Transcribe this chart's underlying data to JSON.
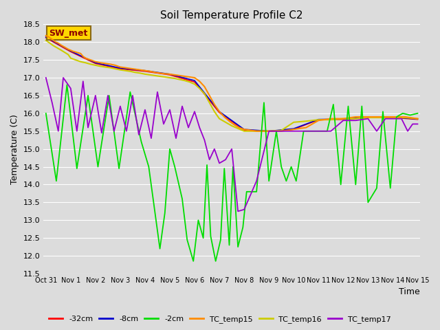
{
  "title": "Soil Temperature Profile C2",
  "xlabel": "Time",
  "ylabel": "Temperature (C)",
  "ylim": [
    11.5,
    18.5
  ],
  "bg_color": "#dcdcdc",
  "annotation_text": "SW_met",
  "annotation_color": "#8B0000",
  "annotation_bg": "#FFD700",
  "annotation_border": "#8B6914",
  "x_tick_str": [
    "Oct 31",
    "Nov 1",
    "Nov 2",
    "Nov 3",
    "Nov 4",
    "Nov 5",
    "Nov 6",
    "Nov 7",
    "Nov 8",
    "Nov 9",
    "Nov 10",
    "Nov 11",
    "Nov 12",
    "Nov 13",
    "Nov 14",
    "Nov 15"
  ],
  "yticks": [
    11.5,
    12.0,
    12.5,
    13.0,
    13.5,
    14.0,
    14.5,
    15.0,
    15.5,
    16.0,
    16.5,
    17.0,
    17.5,
    18.0,
    18.5
  ],
  "series_minus32cm_color": "#FF0000",
  "series_minus8cm_color": "#0000CD",
  "series_minus2cm_color": "#00DD00",
  "series_tc15_color": "#FF8C00",
  "series_tc16_color": "#CCCC00",
  "series_tc17_color": "#9900CC",
  "tc15_x": [
    0.0,
    0.1,
    0.2,
    0.3,
    0.4,
    0.5,
    0.6,
    0.7,
    0.8,
    0.9,
    1.0,
    1.1,
    1.2,
    1.3,
    1.4,
    1.5,
    1.6,
    1.8,
    2.0,
    2.2,
    2.4,
    2.6,
    2.8,
    3.0,
    3.2,
    3.4,
    3.6,
    3.8,
    4.0,
    4.2,
    4.4,
    4.6,
    4.8,
    5.0,
    5.2,
    5.4,
    5.6,
    5.8,
    6.0,
    6.2,
    6.4,
    6.6,
    6.8,
    7.0,
    7.2,
    7.4,
    7.6,
    7.8,
    8.0,
    8.5,
    9.0,
    9.5,
    10.0,
    10.5,
    11.0,
    11.5,
    12.0,
    12.5,
    13.0,
    13.5,
    14.0,
    14.5,
    15.0
  ],
  "tc15_y": [
    18.18,
    18.15,
    18.1,
    18.05,
    18.0,
    17.97,
    17.92,
    17.88,
    17.84,
    17.8,
    17.77,
    17.74,
    17.72,
    17.7,
    17.68,
    17.6,
    17.55,
    17.5,
    17.45,
    17.42,
    17.4,
    17.38,
    17.35,
    17.3,
    17.28,
    17.26,
    17.24,
    17.22,
    17.2,
    17.18,
    17.15,
    17.13,
    17.11,
    17.1,
    17.08,
    17.06,
    17.04,
    17.02,
    17.0,
    16.9,
    16.75,
    16.5,
    16.25,
    16.05,
    15.9,
    15.78,
    15.68,
    15.6,
    15.55,
    15.5,
    15.5,
    15.5,
    15.55,
    15.6,
    15.8,
    15.85,
    15.85,
    15.9,
    15.9,
    15.9,
    15.9,
    15.9,
    15.85
  ],
  "tc16_x": [
    0.0,
    0.3,
    0.6,
    0.9,
    1.0,
    1.2,
    1.4,
    1.6,
    1.8,
    2.0,
    2.2,
    2.4,
    2.6,
    2.8,
    3.0,
    3.2,
    3.4,
    3.6,
    3.8,
    4.0,
    4.2,
    4.4,
    4.6,
    4.8,
    5.0,
    5.2,
    5.4,
    5.6,
    5.8,
    6.0,
    6.2,
    6.4,
    6.6,
    6.8,
    7.0,
    7.5,
    8.0,
    8.5,
    9.0,
    9.5,
    10.0,
    10.5,
    11.0,
    11.5,
    12.0,
    12.5,
    13.0,
    13.5,
    14.0,
    14.5,
    15.0
  ],
  "tc16_y": [
    18.05,
    17.9,
    17.78,
    17.65,
    17.55,
    17.5,
    17.45,
    17.42,
    17.38,
    17.35,
    17.32,
    17.3,
    17.28,
    17.25,
    17.22,
    17.2,
    17.18,
    17.15,
    17.13,
    17.1,
    17.08,
    17.06,
    17.04,
    17.02,
    17.0,
    16.98,
    16.95,
    16.92,
    16.88,
    16.82,
    16.7,
    16.55,
    16.3,
    16.05,
    15.85,
    15.65,
    15.5,
    15.5,
    15.5,
    15.52,
    15.75,
    15.78,
    15.82,
    15.82,
    15.85,
    15.85,
    15.88,
    15.88,
    15.88,
    15.88,
    15.85
  ],
  "minus2cm_x": [
    0.0,
    0.42,
    0.85,
    1.25,
    1.7,
    2.1,
    2.55,
    2.95,
    3.4,
    3.85,
    4.0,
    4.15,
    4.6,
    4.8,
    5.0,
    5.2,
    5.5,
    5.7,
    5.95,
    6.15,
    6.35,
    6.5,
    6.65,
    6.85,
    7.05,
    7.2,
    7.4,
    7.55,
    7.75,
    7.95,
    8.1,
    8.5,
    8.8,
    9.0,
    9.3,
    9.5,
    9.7,
    9.9,
    10.1,
    10.4,
    10.7,
    10.9,
    11.1,
    11.35,
    11.6,
    11.9,
    12.2,
    12.5,
    12.75,
    13.0,
    13.35,
    13.6,
    13.9,
    14.15,
    14.4,
    14.7,
    15.0
  ],
  "minus2cm_y": [
    16.0,
    14.1,
    16.8,
    14.45,
    16.5,
    14.5,
    16.5,
    14.45,
    16.6,
    15.2,
    14.85,
    14.5,
    12.2,
    13.2,
    15.0,
    14.5,
    13.6,
    12.45,
    11.85,
    13.0,
    12.5,
    14.55,
    12.55,
    11.85,
    12.45,
    14.45,
    12.3,
    14.5,
    12.25,
    12.8,
    13.8,
    13.8,
    16.3,
    14.1,
    15.5,
    14.5,
    14.1,
    14.5,
    14.1,
    15.5,
    15.5,
    15.5,
    15.5,
    15.5,
    16.25,
    14.0,
    16.2,
    14.0,
    16.2,
    13.5,
    13.9,
    16.05,
    13.9,
    15.9,
    16.0,
    15.95,
    16.0
  ],
  "tc17_x": [
    0.0,
    0.25,
    0.5,
    0.7,
    1.0,
    1.25,
    1.5,
    1.7,
    2.0,
    2.25,
    2.5,
    2.75,
    3.0,
    3.25,
    3.5,
    3.75,
    4.0,
    4.25,
    4.5,
    4.75,
    5.0,
    5.25,
    5.5,
    5.75,
    6.0,
    6.2,
    6.4,
    6.6,
    6.8,
    7.0,
    7.25,
    7.5,
    7.75,
    8.0,
    8.5,
    9.0,
    9.5,
    10.0,
    10.5,
    11.0,
    11.5,
    12.0,
    12.5,
    13.0,
    13.35,
    13.7,
    14.0,
    14.35,
    14.6,
    14.8,
    15.0
  ],
  "tc17_y": [
    17.0,
    16.3,
    15.5,
    17.0,
    16.7,
    15.5,
    16.9,
    15.6,
    16.5,
    15.45,
    16.5,
    15.5,
    16.2,
    15.5,
    16.5,
    15.4,
    16.1,
    15.3,
    16.6,
    15.7,
    16.1,
    15.3,
    16.2,
    15.6,
    16.05,
    15.6,
    15.25,
    14.7,
    15.0,
    14.6,
    14.7,
    15.0,
    13.25,
    13.3,
    14.1,
    15.5,
    15.5,
    15.5,
    15.5,
    15.5,
    15.5,
    15.8,
    15.8,
    15.85,
    15.5,
    15.85,
    15.85,
    15.85,
    15.5,
    15.7,
    15.7
  ],
  "minus32cm_x": [
    0.0,
    1.0,
    2.0,
    3.0,
    4.0,
    5.0,
    6.0,
    7.0,
    8.0,
    9.0,
    10.0,
    11.0,
    12.0,
    13.0,
    14.0,
    15.0
  ],
  "minus32cm_y": [
    18.12,
    17.73,
    17.4,
    17.25,
    17.18,
    17.08,
    16.88,
    16.02,
    15.53,
    15.5,
    15.55,
    15.82,
    15.83,
    15.88,
    15.88,
    15.83
  ],
  "minus8cm_x": [
    0.0,
    1.0,
    2.0,
    3.0,
    4.0,
    5.0,
    6.0,
    7.0,
    8.0,
    9.0,
    10.0,
    11.0,
    12.0,
    13.0,
    14.0,
    15.0
  ],
  "minus8cm_y": [
    18.14,
    17.75,
    17.42,
    17.27,
    17.2,
    17.1,
    16.92,
    16.05,
    15.55,
    15.5,
    15.57,
    15.83,
    15.84,
    15.89,
    15.89,
    15.84
  ]
}
